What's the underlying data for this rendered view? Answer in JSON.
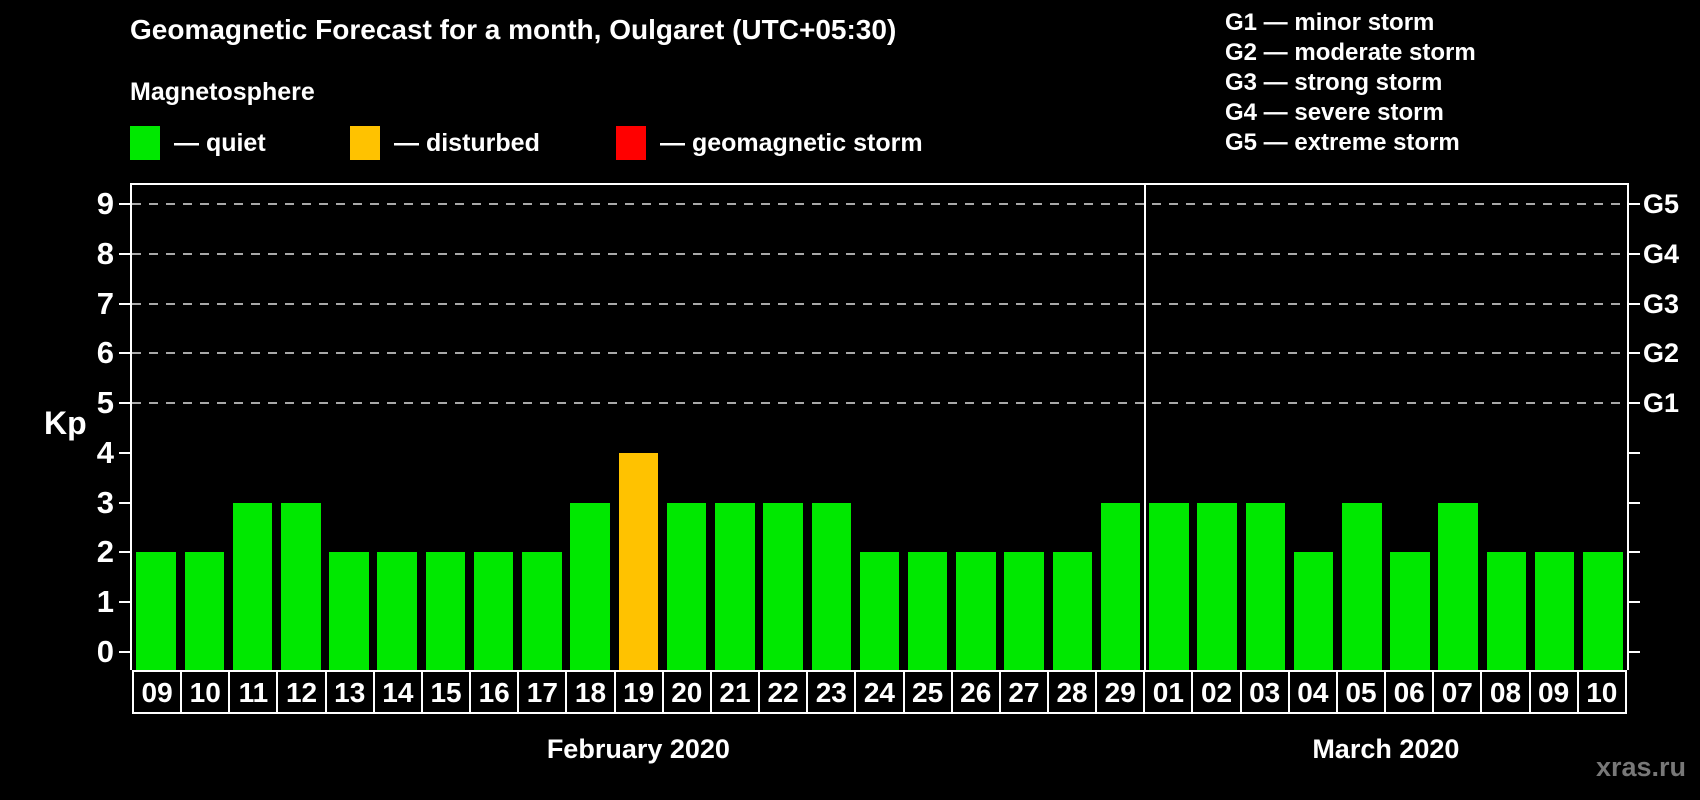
{
  "header": {
    "title": "Geomagnetic Forecast for a month, Oulgaret (UTC+05:30)",
    "subtitle": "Magnetosphere"
  },
  "legend": {
    "items": [
      {
        "name": "quiet",
        "label": "— quiet",
        "color": "#00e800"
      },
      {
        "name": "disturbed",
        "label": "— disturbed",
        "color": "#ffc200"
      },
      {
        "name": "storm",
        "label": "— geomagnetic storm",
        "color": "#ff0000"
      }
    ]
  },
  "g_scale_legend": {
    "items": [
      "G1 — minor storm",
      "G2 — moderate storm",
      "G3 — strong storm",
      "G4 — severe storm",
      "G5 — extreme storm"
    ]
  },
  "footer": {
    "watermark": "xras.ru"
  },
  "chart_data": {
    "type": "bar",
    "title": "Geomagnetic Forecast for a month, Oulgaret (UTC+05:30)",
    "ylabel": "Kp",
    "ylim": [
      0,
      9
    ],
    "y_ticks": [
      0,
      1,
      2,
      3,
      4,
      5,
      6,
      7,
      8,
      9
    ],
    "grid_levels": [
      5,
      6,
      7,
      8,
      9
    ],
    "grid": "dashed horizontal lines at Kp 5-9 only",
    "legend_position": "top",
    "right_axis": {
      "5": "G1",
      "6": "G2",
      "7": "G3",
      "8": "G4",
      "9": "G5"
    },
    "state_colors": {
      "quiet": "#00e800",
      "disturbed": "#ffc200",
      "storm": "#ff0000"
    },
    "months": [
      {
        "label": "February 2020",
        "days": [
          {
            "day": "09",
            "kp": 2,
            "state": "quiet"
          },
          {
            "day": "10",
            "kp": 2,
            "state": "quiet"
          },
          {
            "day": "11",
            "kp": 3,
            "state": "quiet"
          },
          {
            "day": "12",
            "kp": 3,
            "state": "quiet"
          },
          {
            "day": "13",
            "kp": 2,
            "state": "quiet"
          },
          {
            "day": "14",
            "kp": 2,
            "state": "quiet"
          },
          {
            "day": "15",
            "kp": 2,
            "state": "quiet"
          },
          {
            "day": "16",
            "kp": 2,
            "state": "quiet"
          },
          {
            "day": "17",
            "kp": 2,
            "state": "quiet"
          },
          {
            "day": "18",
            "kp": 3,
            "state": "quiet"
          },
          {
            "day": "19",
            "kp": 4,
            "state": "disturbed"
          },
          {
            "day": "20",
            "kp": 3,
            "state": "quiet"
          },
          {
            "day": "21",
            "kp": 3,
            "state": "quiet"
          },
          {
            "day": "22",
            "kp": 3,
            "state": "quiet"
          },
          {
            "day": "23",
            "kp": 3,
            "state": "quiet"
          },
          {
            "day": "24",
            "kp": 2,
            "state": "quiet"
          },
          {
            "day": "25",
            "kp": 2,
            "state": "quiet"
          },
          {
            "day": "26",
            "kp": 2,
            "state": "quiet"
          },
          {
            "day": "27",
            "kp": 2,
            "state": "quiet"
          },
          {
            "day": "28",
            "kp": 2,
            "state": "quiet"
          },
          {
            "day": "29",
            "kp": 3,
            "state": "quiet"
          }
        ]
      },
      {
        "label": "March 2020",
        "days": [
          {
            "day": "01",
            "kp": 3,
            "state": "quiet"
          },
          {
            "day": "02",
            "kp": 3,
            "state": "quiet"
          },
          {
            "day": "03",
            "kp": 3,
            "state": "quiet"
          },
          {
            "day": "04",
            "kp": 2,
            "state": "quiet"
          },
          {
            "day": "05",
            "kp": 3,
            "state": "quiet"
          },
          {
            "day": "06",
            "kp": 2,
            "state": "quiet"
          },
          {
            "day": "07",
            "kp": 3,
            "state": "quiet"
          },
          {
            "day": "08",
            "kp": 2,
            "state": "quiet"
          },
          {
            "day": "09",
            "kp": 2,
            "state": "quiet"
          },
          {
            "day": "10",
            "kp": 2,
            "state": "quiet"
          }
        ]
      }
    ]
  }
}
